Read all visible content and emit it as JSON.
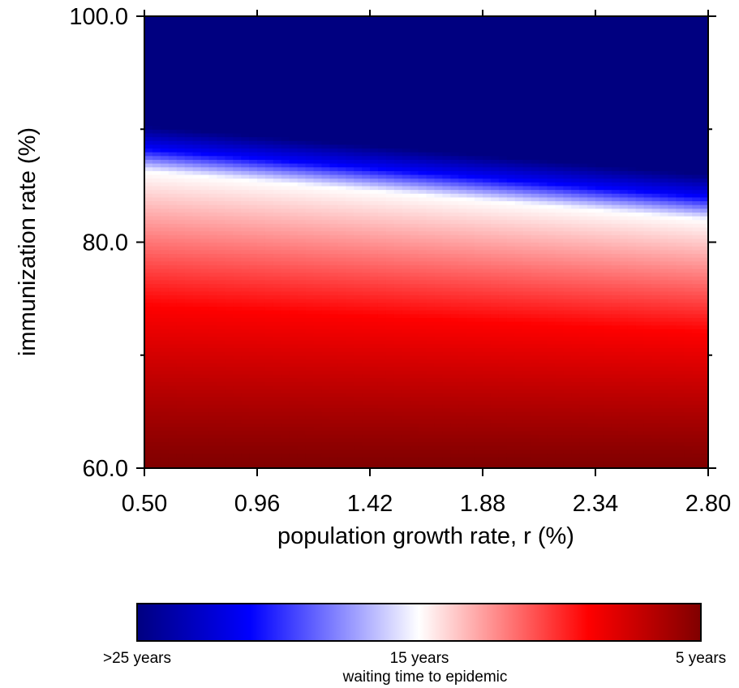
{
  "chart_data": {
    "type": "heatmap",
    "title": "",
    "xlabel": "population growth rate, r (%)",
    "ylabel": "immunization rate (%)",
    "xlim": [
      0.5,
      2.8
    ],
    "ylim": [
      60.0,
      100.0
    ],
    "x_ticks": [
      "0.50",
      "0.96",
      "1.42",
      "1.88",
      "2.34",
      "2.80"
    ],
    "y_ticks": [
      "60.0",
      "80.0",
      "100.0"
    ],
    "y_minor_ticks": [
      70.0,
      90.0
    ],
    "surface": {
      "description_value": "waiting time to epidemic (years)",
      "transition_immunization_at_x": [
        {
          "x": 0.5,
          "y": 86.3
        },
        {
          "x": 2.8,
          "y": 82.0
        }
      ],
      "value_above_transition": ">25 years",
      "value_at_transition": "15 years",
      "value_at_min_immunization": "5 years"
    },
    "colorbar": {
      "title": "waiting time to epidemic",
      "labels": [
        ">25 years",
        "15 years",
        "5 years"
      ],
      "colors": [
        "#000080",
        "#0000ff",
        "#ffffff",
        "#ff0000",
        "#800000"
      ]
    }
  }
}
